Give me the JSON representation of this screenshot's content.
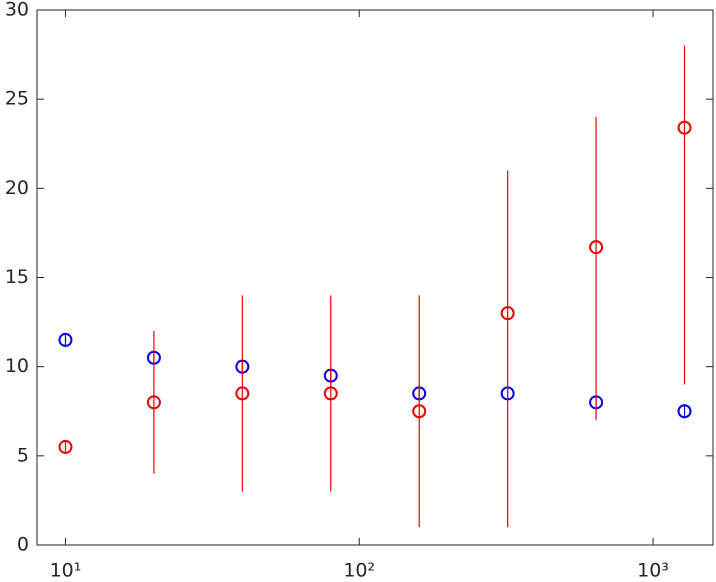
{
  "chart_data": {
    "type": "scatter",
    "x": [
      10,
      20,
      40,
      80,
      160,
      320,
      640,
      1280
    ],
    "xscale": "log",
    "xlim": [
      8,
      1600
    ],
    "xticks": [
      {
        "value": 10,
        "label": "10¹"
      },
      {
        "value": 100,
        "label": "10²"
      },
      {
        "value": 1000,
        "label": "10³"
      }
    ],
    "ylim": [
      0,
      30
    ],
    "yticks": [
      0,
      5,
      10,
      15,
      20,
      25,
      30
    ],
    "grid": false,
    "series": [
      {
        "color": "#0000ee",
        "values": [
          11.5,
          10.5,
          10,
          9.5,
          8.5,
          8.5,
          8,
          7.5
        ],
        "error_low": [
          0.4,
          0.4,
          0.4,
          0.4,
          0.4,
          0.4,
          0.4,
          0.4
        ],
        "error_high": [
          0.4,
          0.4,
          0.4,
          0.4,
          0.4,
          0.4,
          0.4,
          0.4
        ]
      },
      {
        "color": "#ee0000",
        "values": [
          5.5,
          8,
          8.5,
          8.5,
          7.5,
          13,
          16.7,
          23.4
        ],
        "error_low": [
          0.4,
          4,
          5.5,
          5.5,
          6.5,
          12,
          9.7,
          14.4
        ],
        "error_high": [
          0.4,
          4,
          5.5,
          5.5,
          6.5,
          8,
          7.3,
          4.6
        ]
      }
    ]
  }
}
